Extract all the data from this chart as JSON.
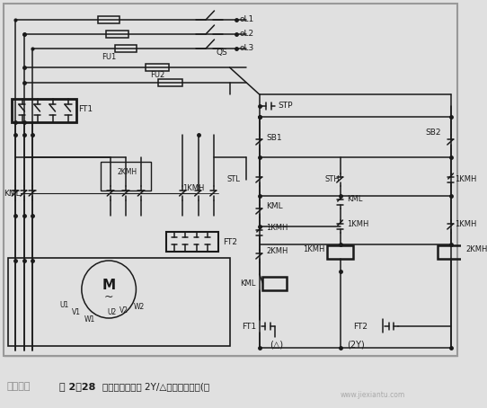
{
  "bg_color": "#e0e0e0",
  "line_color": "#1a1a1a",
  "border_color": "#888888",
  "fig_w": 5.42,
  "fig_h": 4.54,
  "dpi": 100,
  "caption": "图 2－28   三相电动机双速 2Y/△接法调速电路(三",
  "watermark_left": "百度知道",
  "watermark_right": "www.jiexiantu.com"
}
